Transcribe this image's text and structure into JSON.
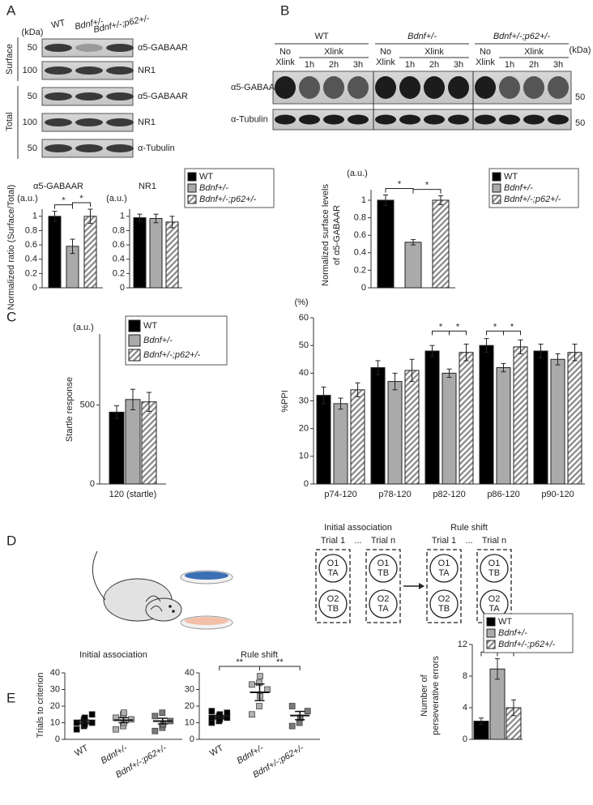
{
  "panels": [
    "A",
    "B",
    "C",
    "D",
    "E"
  ],
  "blots_a": {
    "unit": "(kDa)",
    "columns": [
      "WT",
      "Bdnf+/-",
      "Bdnf+/-;p62+/-"
    ],
    "groups": [
      "Surface",
      "Total"
    ],
    "rows": [
      {
        "label": "α5-GABAAR",
        "size": "50"
      },
      {
        "label": "NR1",
        "size": "100"
      },
      {
        "label": "α5-GABAAR",
        "size": "50"
      },
      {
        "label": "NR1",
        "size": "100"
      },
      {
        "label": "α-Tubulin",
        "size": "50"
      }
    ]
  },
  "blots_b": {
    "unit": "(kDa)",
    "groups": [
      "WT",
      "Bdnf+/-",
      "Bdnf+/-;p62+/-"
    ],
    "control": [
      "No",
      "Xlink"
    ],
    "treatment": "Xlink",
    "times": [
      "1h",
      "2h",
      "3h"
    ],
    "rows": [
      {
        "label": "α5-GABAAR",
        "size": "50"
      },
      {
        "label": "α-Tubulin",
        "size": "50"
      }
    ]
  },
  "diagram": {
    "ellipsis": "...",
    "highlight": "#e02020",
    "stages": [
      {
        "title": "Initial association",
        "rewarded": "O1",
        "trials": [
          {
            "label": "Trial 1",
            "objects": [
              [
                "O1",
                "TA"
              ],
              [
                "O2",
                "TB"
              ]
            ]
          },
          {
            "label": "Trial n",
            "objects": [
              [
                "O1",
                "TB"
              ],
              [
                "O2",
                "TA"
              ]
            ]
          }
        ]
      },
      {
        "title": "Rule shift",
        "rewarded": "TA",
        "trials": [
          {
            "label": "Trial 1",
            "objects": [
              [
                "O1",
                "TA"
              ],
              [
                "O2",
                "TB"
              ]
            ]
          },
          {
            "label": "Trial n",
            "objects": [
              [
                "O1",
                "TB"
              ],
              [
                "O2",
                "TA"
              ]
            ]
          }
        ]
      }
    ]
  },
  "chart_data": [
    {
      "type": "bar",
      "title": "α5-GABAAR",
      "unit": "(a.u.)",
      "ylabel": "Normalized ratio (Surface/Total)",
      "categories": [
        null
      ],
      "series": [
        {
          "name": "WT",
          "color": "#000000",
          "values": [
            1
          ],
          "errors": [
            0.07
          ]
        },
        {
          "name": "Bdnf+/-",
          "color": "#aaaaaa",
          "values": [
            0.58
          ],
          "errors": [
            0.1
          ]
        },
        {
          "name": "Bdnf+/-;p62+/-",
          "color": "#ffffff",
          "pattern": "hatch",
          "values": [
            1
          ],
          "errors": [
            0.1
          ]
        }
      ],
      "ylim": [
        0,
        1.1
      ],
      "yticks": [
        0,
        0.2,
        0.4,
        0.6,
        0.8,
        1
      ],
      "significance": [
        {
          "from": 0,
          "to": 1,
          "label": "*"
        },
        {
          "from": 1,
          "to": 2,
          "label": "*"
        }
      ]
    },
    {
      "type": "bar",
      "title": "NR1",
      "unit": "(a.u.)",
      "categories": [
        null
      ],
      "series": [
        {
          "color": "#000000",
          "values": [
            0.98
          ],
          "errors": [
            0.05
          ]
        },
        {
          "color": "#aaaaaa",
          "values": [
            0.97
          ],
          "errors": [
            0.06
          ]
        },
        {
          "color": "#ffffff",
          "pattern": "hatch",
          "values": [
            0.92
          ],
          "errors": [
            0.08
          ]
        }
      ],
      "ylim": [
        0,
        1.1
      ],
      "yticks": [
        0,
        0.2,
        0.4,
        0.6,
        0.8,
        1
      ]
    },
    {
      "type": "bar",
      "unit": "(a.u.)",
      "ylabel": [
        "Normalized surface levels",
        "of α5-GABAAR"
      ],
      "categories": [
        null
      ],
      "series": [
        {
          "name": "WT",
          "color": "#000000",
          "values": [
            1
          ],
          "errors": [
            0.06
          ]
        },
        {
          "name": "Bdnf+/-",
          "color": "#aaaaaa",
          "values": [
            0.52
          ],
          "errors": [
            0.03
          ]
        },
        {
          "name": "Bdnf+/-;p62+/-",
          "color": "#ffffff",
          "pattern": "hatch",
          "values": [
            1
          ],
          "errors": [
            0.05
          ]
        }
      ],
      "ylim": [
        0,
        1.12
      ],
      "yticks": [
        0,
        0.2,
        0.4,
        0.6,
        0.8,
        1
      ],
      "significance": [
        {
          "from": 0,
          "to": 1,
          "label": "*"
        },
        {
          "from": 1,
          "to": 2,
          "label": "*"
        }
      ]
    },
    {
      "type": "bar",
      "unit": "(a.u.)",
      "ylabel": "Startle response",
      "categories": [
        "120 (startle)"
      ],
      "series": [
        {
          "name": "WT",
          "color": "#000000",
          "values": [
            455
          ],
          "errors": [
            40
          ]
        },
        {
          "name": "Bdnf+/-",
          "color": "#aaaaaa",
          "values": [
            535
          ],
          "errors": [
            65
          ]
        },
        {
          "name": "Bdnf+/-;p62+/-",
          "color": "#ffffff",
          "pattern": "hatch",
          "values": [
            520
          ],
          "errors": [
            60
          ]
        }
      ],
      "ylim": [
        0,
        950
      ],
      "yticks": [
        0,
        500
      ]
    },
    {
      "type": "bar",
      "unit": "(%)",
      "ylabel": "%PPI",
      "categories": [
        "p74-120",
        "p78-120",
        "p82-120",
        "p86-120",
        "p90-120"
      ],
      "series": [
        {
          "color": "#000000",
          "values": [
            32,
            42,
            48,
            50,
            48
          ],
          "errors": [
            3,
            2.5,
            2,
            2.5,
            2.5
          ]
        },
        {
          "color": "#aaaaaa",
          "values": [
            29,
            37,
            40,
            42,
            45
          ],
          "errors": [
            2,
            3,
            1.5,
            1.5,
            2
          ]
        },
        {
          "color": "#ffffff",
          "pattern": "hatch",
          "values": [
            34,
            41,
            47.5,
            49.5,
            47.5
          ],
          "errors": [
            2.5,
            4,
            3,
            2.5,
            3
          ]
        }
      ],
      "ylim": [
        0,
        60
      ],
      "yticks": [
        0,
        10,
        20,
        30,
        40,
        50,
        60
      ],
      "significance": [
        {
          "category": 2,
          "from": 0,
          "to": 1,
          "label": "*"
        },
        {
          "category": 2,
          "from": 1,
          "to": 2,
          "label": "*"
        },
        {
          "category": 3,
          "from": 0,
          "to": 1,
          "label": "*"
        },
        {
          "category": 3,
          "from": 1,
          "to": 2,
          "label": "*"
        }
      ]
    },
    {
      "type": "dot",
      "title": "Initial association",
      "ylabel": "Trials to criterion",
      "categories": [
        "WT",
        "Bdnf+/-",
        "Bdnf+/-;p62+/-"
      ],
      "point_colors": [
        "#000000",
        "#b0b0b0",
        "#7a7a7a"
      ],
      "points": [
        [
          6,
          8,
          9,
          10,
          10,
          12,
          13,
          15
        ],
        [
          6,
          8,
          10,
          12,
          13,
          15,
          16
        ],
        [
          5,
          7,
          9,
          11,
          14,
          16
        ]
      ],
      "means": [
        10.5,
        11.5,
        11
      ],
      "sems": [
        1.1,
        1.5,
        1.7
      ],
      "ylim": [
        0,
        40
      ],
      "yticks": [
        0,
        10,
        20,
        30,
        40
      ]
    },
    {
      "type": "dot",
      "title": "Rule shift",
      "categories": [
        "WT",
        "Bdnf+/-",
        "Bdnf+/-;p62+/-"
      ],
      "point_colors": [
        "#000000",
        "#b0b0b0",
        "#7a7a7a"
      ],
      "points": [
        [
          10,
          11,
          12,
          13,
          13,
          14,
          15,
          16,
          17
        ],
        [
          15,
          20,
          26,
          30,
          33,
          34,
          38
        ],
        [
          8,
          10,
          13,
          17,
          20
        ]
      ],
      "means": [
        13.3,
        28.3,
        14.3
      ],
      "sems": [
        1,
        5,
        2.5
      ],
      "ylim": [
        0,
        40
      ],
      "yticks": [
        0,
        10,
        20,
        30,
        40
      ],
      "significance": [
        {
          "from": 0,
          "to": 1,
          "label": "**"
        },
        {
          "from": 1,
          "to": 2,
          "label": "**"
        }
      ]
    },
    {
      "type": "bar",
      "ylabel": [
        "Number of",
        "perseverative errors"
      ],
      "categories": [
        null
      ],
      "series": [
        {
          "name": "WT",
          "color": "#000000",
          "values": [
            2.3
          ],
          "errors": [
            0.4
          ]
        },
        {
          "name": "Bdnf+/-",
          "color": "#aaaaaa",
          "values": [
            8.9
          ],
          "errors": [
            1.3
          ]
        },
        {
          "name": "Bdnf+/-;p62+/-",
          "color": "#ffffff",
          "pattern": "hatch",
          "values": [
            4
          ],
          "errors": [
            1
          ]
        }
      ],
      "ylim": [
        0,
        12
      ],
      "yticks": [
        0,
        4,
        8,
        12
      ],
      "significance": [
        {
          "from": 0,
          "to": 1,
          "label": "**"
        },
        {
          "from": 1,
          "to": 2,
          "label": "*"
        }
      ]
    }
  ]
}
